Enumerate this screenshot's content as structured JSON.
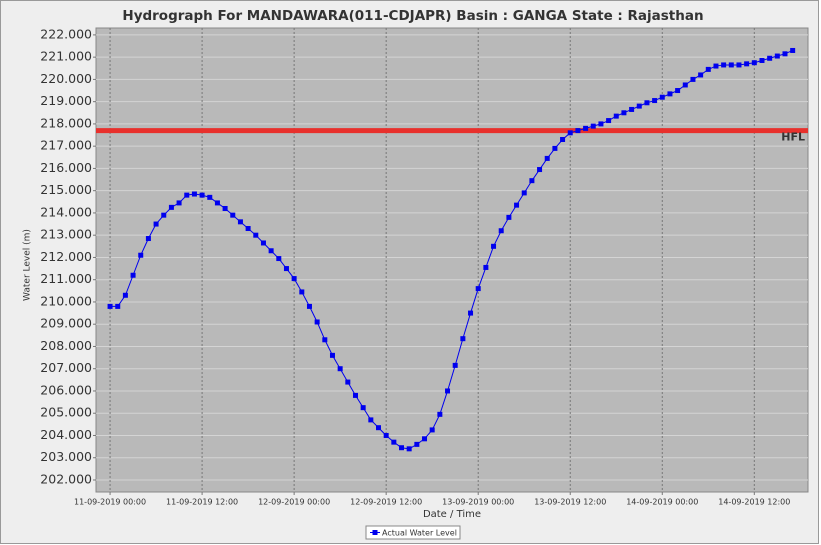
{
  "chart_data": {
    "type": "line",
    "title": "Hydrograph For MANDAWARA(011-CDJAPR) Basin : GANGA State : Rajasthan",
    "x_label": "Date / Time",
    "y_label": "Water Level (m)",
    "x": [
      "11-09-2019 00:00",
      "11-09-2019 01:00",
      "11-09-2019 02:00",
      "11-09-2019 03:00",
      "11-09-2019 04:00",
      "11-09-2019 05:00",
      "11-09-2019 06:00",
      "11-09-2019 07:00",
      "11-09-2019 08:00",
      "11-09-2019 09:00",
      "11-09-2019 10:00",
      "11-09-2019 11:00",
      "11-09-2019 12:00",
      "11-09-2019 13:00",
      "11-09-2019 14:00",
      "11-09-2019 15:00",
      "11-09-2019 16:00",
      "11-09-2019 17:00",
      "11-09-2019 18:00",
      "11-09-2019 19:00",
      "11-09-2019 20:00",
      "11-09-2019 21:00",
      "11-09-2019 22:00",
      "11-09-2019 23:00",
      "12-09-2019 00:00",
      "12-09-2019 01:00",
      "12-09-2019 02:00",
      "12-09-2019 03:00",
      "12-09-2019 04:00",
      "12-09-2019 05:00",
      "12-09-2019 06:00",
      "12-09-2019 07:00",
      "12-09-2019 08:00",
      "12-09-2019 09:00",
      "12-09-2019 10:00",
      "12-09-2019 11:00",
      "12-09-2019 12:00",
      "12-09-2019 13:00",
      "12-09-2019 14:00",
      "12-09-2019 15:00",
      "12-09-2019 16:00",
      "12-09-2019 17:00",
      "12-09-2019 18:00",
      "12-09-2019 19:00",
      "12-09-2019 20:00",
      "12-09-2019 21:00",
      "12-09-2019 22:00",
      "12-09-2019 23:00",
      "13-09-2019 00:00",
      "13-09-2019 01:00",
      "13-09-2019 02:00",
      "13-09-2019 03:00",
      "13-09-2019 04:00",
      "13-09-2019 05:00",
      "13-09-2019 06:00",
      "13-09-2019 07:00",
      "13-09-2019 08:00",
      "13-09-2019 09:00",
      "13-09-2019 10:00",
      "13-09-2019 11:00",
      "13-09-2019 12:00",
      "13-09-2019 13:00",
      "13-09-2019 14:00",
      "13-09-2019 15:00",
      "13-09-2019 16:00",
      "13-09-2019 17:00",
      "13-09-2019 18:00",
      "13-09-2019 19:00",
      "13-09-2019 20:00",
      "13-09-2019 21:00",
      "13-09-2019 22:00",
      "13-09-2019 23:00",
      "14-09-2019 00:00",
      "14-09-2019 01:00",
      "14-09-2019 02:00",
      "14-09-2019 03:00",
      "14-09-2019 04:00",
      "14-09-2019 05:00",
      "14-09-2019 06:00",
      "14-09-2019 07:00",
      "14-09-2019 08:00",
      "14-09-2019 09:00",
      "14-09-2019 10:00",
      "14-09-2019 11:00",
      "14-09-2019 12:00",
      "14-09-2019 13:00",
      "14-09-2019 14:00",
      "14-09-2019 15:00",
      "14-09-2019 16:00",
      "14-09-2019 17:00"
    ],
    "series": [
      {
        "name": "Actual Water Level",
        "color": "#0000ee",
        "values": [
          209.8,
          209.8,
          210.3,
          211.2,
          212.1,
          212.85,
          213.5,
          213.9,
          214.25,
          214.45,
          214.8,
          214.85,
          214.8,
          214.7,
          214.45,
          214.2,
          213.9,
          213.6,
          213.3,
          213.0,
          212.65,
          212.3,
          211.95,
          211.5,
          211.05,
          210.45,
          209.8,
          209.1,
          208.3,
          207.6,
          207.0,
          206.4,
          205.8,
          205.25,
          204.7,
          204.35,
          204.0,
          203.7,
          203.45,
          203.4,
          203.6,
          203.85,
          204.25,
          204.95,
          206.0,
          207.15,
          208.35,
          209.5,
          210.6,
          211.55,
          212.5,
          213.2,
          213.8,
          214.35,
          214.9,
          215.45,
          215.95,
          216.45,
          216.9,
          217.3,
          217.6,
          217.7,
          217.8,
          217.9,
          218.0,
          218.15,
          218.35,
          218.5,
          218.65,
          218.8,
          218.95,
          219.05,
          219.2,
          219.35,
          219.5,
          219.75,
          220.0,
          220.2,
          220.45,
          220.6,
          220.65,
          220.65,
          220.65,
          220.7,
          220.75,
          220.85,
          220.95,
          221.05,
          221.15,
          221.3
        ]
      }
    ],
    "hfl": {
      "value": 217.7,
      "label": "HFL",
      "color": "#e8302c"
    },
    "xlim": [
      "10-09-2019 22:10",
      "14-09-2019 19:00"
    ],
    "xticks": [
      "11-09-2019 00:00",
      "11-09-2019 12:00",
      "12-09-2019 00:00",
      "12-09-2019 12:00",
      "13-09-2019 00:00",
      "13-09-2019 12:00",
      "14-09-2019 00:00",
      "14-09-2019 12:00"
    ],
    "ylim": [
      201.46,
      222.31
    ],
    "yticks": [
      {
        "value": 202,
        "label": "202.000"
      },
      {
        "value": 203,
        "label": "203.000"
      },
      {
        "value": 204,
        "label": "204.000"
      },
      {
        "value": 205,
        "label": "205.000"
      },
      {
        "value": 206,
        "label": "206.000"
      },
      {
        "value": 207,
        "label": "207.000"
      },
      {
        "value": 208,
        "label": "208.000"
      },
      {
        "value": 209,
        "label": "209.000"
      },
      {
        "value": 210,
        "label": "210.000"
      },
      {
        "value": 211,
        "label": "211.000"
      },
      {
        "value": 212,
        "label": "212.000"
      },
      {
        "value": 213,
        "label": "213.000"
      },
      {
        "value": 214,
        "label": "214.000"
      },
      {
        "value": 215,
        "label": "215.000"
      },
      {
        "value": 216,
        "label": "216.000"
      },
      {
        "value": 217,
        "label": "217.000"
      },
      {
        "value": 218,
        "label": "218.000"
      },
      {
        "value": 219,
        "label": "219.000"
      },
      {
        "value": 220,
        "label": "220.000"
      },
      {
        "value": 221,
        "label": "221.000"
      },
      {
        "value": 222,
        "label": "222.000"
      }
    ],
    "grid": true
  }
}
